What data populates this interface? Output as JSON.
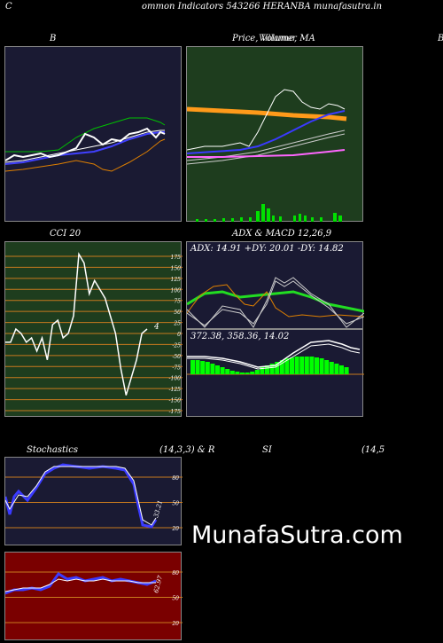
{
  "header": {
    "left_letter": "C",
    "title": "ommon  Indicators 543266  HERANBA munafasutra.in",
    "right_letter": "B"
  },
  "watermark": "MunafaSutra.com",
  "colors": {
    "dark_navy": "#1a1a33",
    "dark_green": "#1e3d1e",
    "dark_red": "#7a0000",
    "grid_orange": "#c87a1e"
  },
  "chart_data": [
    {
      "type": "line",
      "title": "B",
      "series": [
        {
          "color": "#00c000",
          "values": [
            0,
            0,
            0,
            0,
            0,
            0,
            0,
            0,
            0,
            0,
            0,
            0,
            0,
            0,
            0,
            0,
            0,
            0,
            0,
            0,
            0,
            0,
            0,
            0,
            0,
            0,
            0,
            0,
            0,
            0,
            0,
            0,
            0,
            0,
            0,
            0,
            0,
            0,
            0,
            0
          ]
        }
      ]
    },
    {
      "type": "line",
      "title": "Price,  Volume,  MA",
      "overlay_text": "Villamer",
      "ylim": [
        0,
        100
      ]
    },
    {
      "type": "line",
      "title": "CCI 20",
      "ylim": [
        -175,
        175
      ],
      "y_ticks": [
        175,
        150,
        125,
        100,
        75,
        50,
        25,
        0,
        -25,
        -50,
        -75,
        -100,
        -125,
        -150,
        -175
      ],
      "last_value_label": "4",
      "series": [
        {
          "name": "",
          "values": [
            -20,
            -20,
            10,
            0,
            -20,
            -10,
            -40,
            -10,
            -60,
            20,
            30,
            -10,
            0,
            40,
            180,
            160,
            90,
            120,
            100,
            80,
            40,
            0,
            -80,
            -140,
            -100,
            -60,
            0,
            10
          ]
        }
      ]
    },
    {
      "type": "line",
      "title": "ADX  & MACD 12,26,9",
      "adx_text": "ADX: 14.91  +DY: 20.01  -DY: 14.82",
      "macd_text": "372.38,   358.36,   14.02"
    },
    {
      "type": "line",
      "title_left": "Stochastics",
      "title_params": "(14,3,3) & R",
      "ylim": [
        0,
        100
      ],
      "y_ticks": [
        80,
        50,
        20
      ],
      "last_value_label": "33.21"
    },
    {
      "type": "line",
      "title": "SI",
      "title_params": "(14,5",
      "ylim": [
        0,
        100
      ],
      "y_ticks": [
        80,
        50,
        20
      ],
      "last_value_label": "62.97"
    }
  ]
}
